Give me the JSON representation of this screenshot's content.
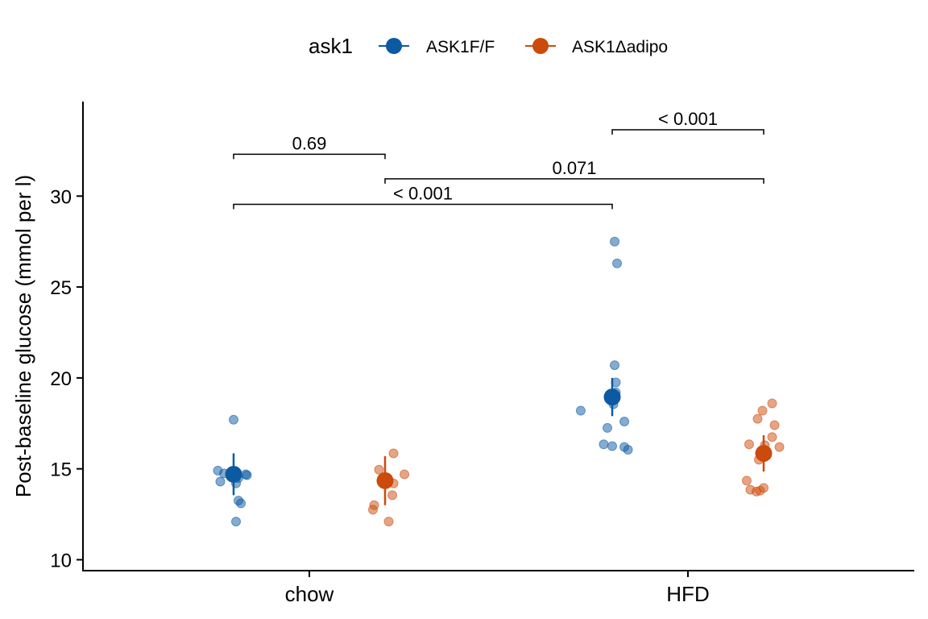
{
  "chart_data": {
    "type": "scatter",
    "xlabel": "",
    "ylabel": "Post-baseline glucose (mmol per l)",
    "ylim": [
      9.4,
      35.2
    ],
    "yticks": [
      10,
      15,
      20,
      25,
      30
    ],
    "categories": [
      "chow",
      "HFD"
    ],
    "legend": {
      "title": "ask1",
      "position": "top",
      "entries": [
        "ASK1F/F",
        "ASK1Δadipo"
      ]
    },
    "grid": false,
    "series": [
      {
        "name": "ASK1F/F",
        "color": "#0b5aa2",
        "groups": [
          {
            "category": "chow",
            "points": [
              {
                "dx": 0.0,
                "y": 17.7
              },
              {
                "dx": -0.13,
                "y": 14.9
              },
              {
                "dx": -0.08,
                "y": 14.75
              },
              {
                "dx": 0.1,
                "y": 14.7
              },
              {
                "dx": 0.11,
                "y": 14.65
              },
              {
                "dx": 0.04,
                "y": 14.5
              },
              {
                "dx": -0.11,
                "y": 14.3
              },
              {
                "dx": 0.02,
                "y": 14.2
              },
              {
                "dx": 0.04,
                "y": 13.25
              },
              {
                "dx": 0.06,
                "y": 13.1
              },
              {
                "dx": 0.02,
                "y": 12.1
              }
            ],
            "mean": 14.7,
            "lower": 13.55,
            "upper": 15.85
          },
          {
            "category": "HFD",
            "points": [
              {
                "dx": 0.02,
                "y": 27.5
              },
              {
                "dx": 0.04,
                "y": 26.3
              },
              {
                "dx": 0.02,
                "y": 20.7
              },
              {
                "dx": 0.03,
                "y": 19.75
              },
              {
                "dx": 0.03,
                "y": 19.2
              },
              {
                "dx": 0.02,
                "y": 19.0
              },
              {
                "dx": 0.01,
                "y": 18.55
              },
              {
                "dx": -0.26,
                "y": 18.2
              },
              {
                "dx": 0.1,
                "y": 17.6
              },
              {
                "dx": -0.04,
                "y": 17.25
              },
              {
                "dx": -0.07,
                "y": 16.35
              },
              {
                "dx": 0.0,
                "y": 16.25
              },
              {
                "dx": 0.1,
                "y": 16.2
              },
              {
                "dx": 0.13,
                "y": 16.05
              }
            ],
            "mean": 18.95,
            "lower": 17.9,
            "upper": 20.0
          }
        ]
      },
      {
        "name": "ASK1Δadipo",
        "color": "#cb4b0c",
        "groups": [
          {
            "category": "chow",
            "points": [
              {
                "dx": 0.07,
                "y": 15.85
              },
              {
                "dx": -0.05,
                "y": 14.95
              },
              {
                "dx": 0.16,
                "y": 14.7
              },
              {
                "dx": 0.07,
                "y": 14.2
              },
              {
                "dx": 0.06,
                "y": 13.55
              },
              {
                "dx": -0.09,
                "y": 13.0
              },
              {
                "dx": -0.1,
                "y": 12.75
              },
              {
                "dx": 0.03,
                "y": 12.1
              }
            ],
            "mean": 14.35,
            "lower": 13.0,
            "upper": 15.7
          },
          {
            "category": "HFD",
            "points": [
              {
                "dx": 0.07,
                "y": 18.6
              },
              {
                "dx": -0.01,
                "y": 18.2
              },
              {
                "dx": -0.05,
                "y": 17.75
              },
              {
                "dx": 0.09,
                "y": 17.4
              },
              {
                "dx": 0.07,
                "y": 16.75
              },
              {
                "dx": -0.12,
                "y": 16.35
              },
              {
                "dx": 0.01,
                "y": 16.3
              },
              {
                "dx": 0.13,
                "y": 16.2
              },
              {
                "dx": -0.04,
                "y": 15.5
              },
              {
                "dx": -0.14,
                "y": 14.35
              },
              {
                "dx": -0.11,
                "y": 13.85
              },
              {
                "dx": -0.06,
                "y": 13.75
              },
              {
                "dx": -0.03,
                "y": 13.8
              },
              {
                "dx": 0.0,
                "y": 13.95
              }
            ],
            "mean": 15.85,
            "lower": 14.85,
            "upper": 16.85
          }
        ]
      }
    ],
    "comparisons": [
      {
        "from": {
          "category": "chow",
          "series": "ASK1F/F"
        },
        "to": {
          "category": "chow",
          "series": "ASK1Δadipo"
        },
        "y": 32.3,
        "label": "0.69"
      },
      {
        "from": {
          "category": "HFD",
          "series": "ASK1F/F"
        },
        "to": {
          "category": "HFD",
          "series": "ASK1Δadipo"
        },
        "y": 33.65,
        "label": "< 0.001"
      },
      {
        "from": {
          "category": "chow",
          "series": "ASK1Δadipo"
        },
        "to": {
          "category": "HFD",
          "series": "ASK1Δadipo"
        },
        "y": 30.95,
        "label": "0.071"
      },
      {
        "from": {
          "category": "chow",
          "series": "ASK1F/F"
        },
        "to": {
          "category": "HFD",
          "series": "ASK1F/F"
        },
        "y": 29.55,
        "label": "< 0.001"
      }
    ]
  }
}
